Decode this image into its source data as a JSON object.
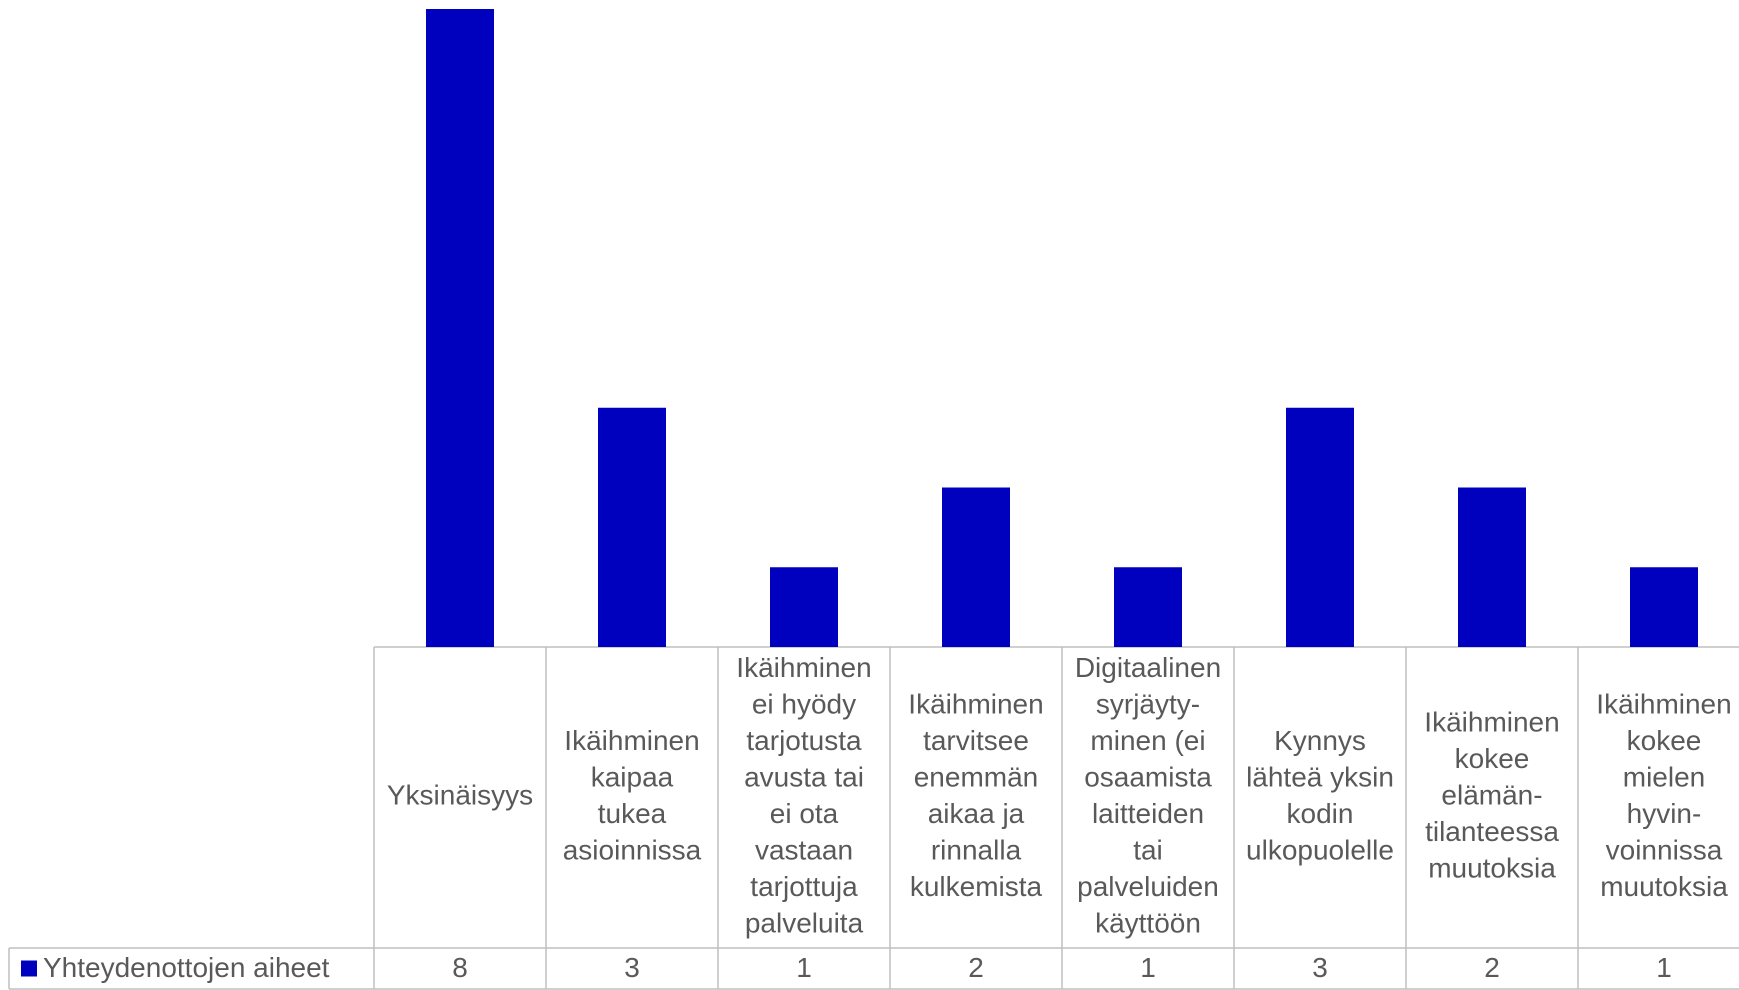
{
  "chart_data": {
    "type": "bar",
    "categories": [
      "Yksinäisyys",
      "Ikäihminen\nkaipaa\ntukea\nasioinnissa",
      "Ikäihminen\nei hyödy\ntarjotusta\navusta tai\nei ota\nvastaan\ntarjottuja\npalveluita",
      "Ikäihminen\ntarvitsee\nenemmän\naikaa ja\nrinnalla\nkulkemista",
      "Digitaalinen\nsyrjäyty-\nminen (ei\nosaamista\nlaitteiden\ntai\npalveluiden\nkäyttöön",
      "Kynnys\nlähteä yksin\nkodin\nulkopuolelle",
      "Ikäihminen\nkokee\nelämän-\ntilanteessa\nmuutoksia",
      "Ikäihminen\nkokee\nmielen\nhyvin-\nvoinnissa\nmuutoksia"
    ],
    "series": [
      {
        "name": "Yhteydenottojen aiheet",
        "color": "#0000bf",
        "values": [
          8,
          3,
          1,
          2,
          1,
          3,
          2,
          1
        ]
      }
    ],
    "ylim": [
      0,
      8
    ]
  }
}
